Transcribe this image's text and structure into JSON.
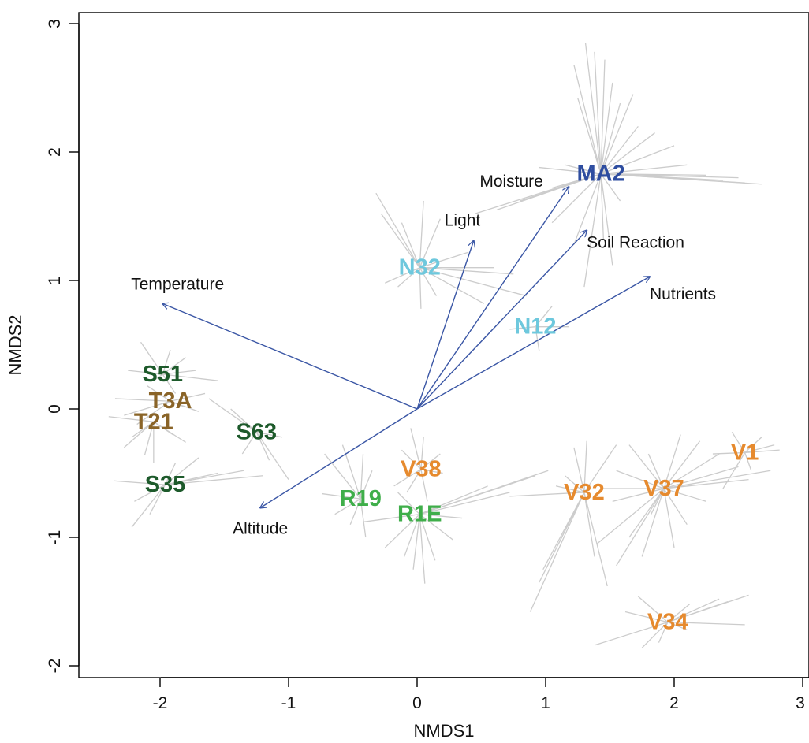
{
  "chart_data": {
    "type": "scatter",
    "xlabel": "NMDS1",
    "ylabel": "NMDS2",
    "xlim": [
      -2.62,
      3.0
    ],
    "ylim": [
      -2.07,
      3.0
    ],
    "x_ticks": [
      -2,
      -1,
      0,
      1,
      2,
      3
    ],
    "y_ticks": [
      -2,
      -1,
      0,
      1,
      2,
      3
    ],
    "grid": false,
    "colors": {
      "spider": "#cccccc",
      "vector": "#3a56a5",
      "dark_green": "#1d5a2b",
      "brown": "#8a6428",
      "light_green": "#3fae4a",
      "cyan": "#6ec8dd",
      "orange": "#e68a2e",
      "navy": "#2e4da0"
    },
    "vectors": [
      {
        "label": "Temperature",
        "x": -1.98,
        "y": 0.82
      },
      {
        "label": "Light",
        "x": 0.44,
        "y": 1.31
      },
      {
        "label": "Moisture",
        "x": 1.18,
        "y": 1.73
      },
      {
        "label": "Soil Reaction",
        "x": 1.32,
        "y": 1.39
      },
      {
        "label": "Nutrients",
        "x": 1.81,
        "y": 1.03
      },
      {
        "label": "Altitude",
        "x": -1.22,
        "y": -0.77
      }
    ],
    "sites": [
      {
        "label": "MA2",
        "x": 1.43,
        "y": 1.83,
        "color": "navy",
        "spokes": [
          [
            1.22,
            2.68
          ],
          [
            1.31,
            2.85
          ],
          [
            1.38,
            2.78
          ],
          [
            1.46,
            2.72
          ],
          [
            1.52,
            2.54
          ],
          [
            1.58,
            2.38
          ],
          [
            1.68,
            2.45
          ],
          [
            1.72,
            2.2
          ],
          [
            1.85,
            2.15
          ],
          [
            2.0,
            2.05
          ],
          [
            2.1,
            1.9
          ],
          [
            2.25,
            1.82
          ],
          [
            2.38,
            1.78
          ],
          [
            2.55,
            1.76
          ],
          [
            2.68,
            1.75
          ],
          [
            2.5,
            1.8
          ],
          [
            1.58,
            1.62
          ],
          [
            1.45,
            1.32
          ],
          [
            1.52,
            1.12
          ],
          [
            1.3,
            0.95
          ],
          [
            1.22,
            1.28
          ],
          [
            1.05,
            1.45
          ],
          [
            0.8,
            1.62
          ],
          [
            0.62,
            1.55
          ],
          [
            0.45,
            1.52
          ],
          [
            1.05,
            1.72
          ],
          [
            1.15,
            1.9
          ],
          [
            0.95,
            1.88
          ],
          [
            1.25,
            2.42
          ]
        ]
      },
      {
        "label": "N32",
        "x": 0.02,
        "y": 1.1,
        "color": "cyan",
        "spokes": [
          [
            -0.32,
            1.68
          ],
          [
            -0.28,
            1.52
          ],
          [
            -0.12,
            1.45
          ],
          [
            0.05,
            1.62
          ],
          [
            0.18,
            1.48
          ],
          [
            0.36,
            1.1
          ],
          [
            0.4,
            1.22
          ],
          [
            0.6,
            1.1
          ],
          [
            0.75,
            1.05
          ],
          [
            0.85,
            0.88
          ],
          [
            0.52,
            0.82
          ],
          [
            0.15,
            0.88
          ],
          [
            0.03,
            0.78
          ],
          [
            -0.15,
            0.95
          ],
          [
            -0.25,
            0.98
          ]
        ]
      },
      {
        "label": "N12",
        "x": 0.92,
        "y": 0.64,
        "color": "cyan",
        "spokes": [
          [
            0.72,
            0.62
          ],
          [
            1.05,
            0.8
          ],
          [
            1.18,
            0.64
          ],
          [
            0.95,
            0.45
          ]
        ]
      },
      {
        "label": "S51",
        "x": -1.98,
        "y": 0.27,
        "color": "dark_green",
        "spokes": [
          [
            -2.15,
            0.52
          ],
          [
            -1.92,
            0.46
          ],
          [
            -1.72,
            0.3
          ],
          [
            -1.55,
            0.22
          ],
          [
            -1.88,
            0.12
          ],
          [
            -2.05,
            0.22
          ],
          [
            -2.25,
            0.3
          ],
          [
            -1.8,
            0.4
          ]
        ]
      },
      {
        "label": "T3A",
        "x": -1.92,
        "y": 0.06,
        "color": "brown",
        "spokes": [
          [
            -2.35,
            0.08
          ],
          [
            -2.28,
            -0.05
          ],
          [
            -2.18,
            -0.12
          ],
          [
            -1.65,
            0.12
          ],
          [
            -1.7,
            -0.02
          ],
          [
            -1.82,
            0.02
          ],
          [
            -2.1,
            0.18
          ]
        ]
      },
      {
        "label": "T21",
        "x": -2.05,
        "y": -0.1,
        "color": "brown",
        "spokes": [
          [
            -2.4,
            -0.06
          ],
          [
            -2.28,
            -0.3
          ],
          [
            -2.12,
            -0.36
          ],
          [
            -2.05,
            -0.42
          ],
          [
            -1.8,
            -0.26
          ],
          [
            -1.9,
            -0.2
          ],
          [
            -2.22,
            -0.22
          ]
        ]
      },
      {
        "label": "S63",
        "x": -1.25,
        "y": -0.18,
        "color": "dark_green",
        "spokes": [
          [
            -1.62,
            0.08
          ],
          [
            -1.45,
            0.0
          ],
          [
            -1.05,
            -0.22
          ],
          [
            -1.0,
            -0.55
          ],
          [
            -1.15,
            -0.4
          ],
          [
            -1.36,
            -0.35
          ]
        ]
      },
      {
        "label": "S35",
        "x": -1.96,
        "y": -0.59,
        "color": "dark_green",
        "spokes": [
          [
            -2.36,
            -0.56
          ],
          [
            -2.2,
            -0.72
          ],
          [
            -2.08,
            -0.82
          ],
          [
            -2.22,
            -0.92
          ],
          [
            -1.55,
            -0.5
          ],
          [
            -1.35,
            -0.48
          ],
          [
            -1.2,
            -0.52
          ],
          [
            -1.7,
            -0.38
          ],
          [
            -1.88,
            -0.42
          ]
        ]
      },
      {
        "label": "R19",
        "x": -0.44,
        "y": -0.7,
        "color": "light_green",
        "spokes": [
          [
            -0.72,
            -0.35
          ],
          [
            -0.58,
            -0.28
          ],
          [
            -0.42,
            -0.35
          ],
          [
            -0.35,
            -0.48
          ],
          [
            -0.52,
            -0.9
          ],
          [
            -0.4,
            -1.0
          ],
          [
            -0.64,
            -0.82
          ],
          [
            -0.74,
            -0.66
          ]
        ]
      },
      {
        "label": "V38",
        "x": 0.03,
        "y": -0.47,
        "color": "orange",
        "spokes": [
          [
            -0.05,
            -0.15
          ],
          [
            0.05,
            -0.22
          ],
          [
            0.18,
            -0.35
          ],
          [
            0.2,
            -0.5
          ],
          [
            0.08,
            -0.72
          ],
          [
            -0.08,
            -0.65
          ],
          [
            -0.18,
            -0.6
          ],
          [
            -0.12,
            -0.32
          ]
        ]
      },
      {
        "label": "R1E",
        "x": 0.02,
        "y": -0.82,
        "color": "light_green",
        "spokes": [
          [
            -0.42,
            -0.88
          ],
          [
            -0.25,
            -1.08
          ],
          [
            -0.1,
            -1.15
          ],
          [
            -0.03,
            -1.25
          ],
          [
            0.06,
            -1.36
          ],
          [
            0.14,
            -1.18
          ],
          [
            0.28,
            -1.02
          ],
          [
            0.35,
            -0.85
          ],
          [
            0.72,
            -0.65
          ],
          [
            0.92,
            -0.52
          ],
          [
            1.02,
            -0.48
          ],
          [
            0.55,
            -0.6
          ],
          [
            -0.15,
            -0.65
          ]
        ]
      },
      {
        "label": "V32",
        "x": 1.3,
        "y": -0.65,
        "color": "orange",
        "spokes": [
          [
            0.72,
            -0.68
          ],
          [
            1.08,
            -0.6
          ],
          [
            1.15,
            -0.52
          ],
          [
            1.22,
            -0.3
          ],
          [
            1.32,
            -0.25
          ],
          [
            1.55,
            -0.28
          ],
          [
            1.38,
            -1.15
          ],
          [
            1.48,
            -1.38
          ],
          [
            0.98,
            -1.25
          ],
          [
            0.95,
            -1.35
          ],
          [
            0.88,
            -1.58
          ],
          [
            1.1,
            -1.05
          ]
        ]
      },
      {
        "label": "V37",
        "x": 1.92,
        "y": -0.62,
        "color": "orange",
        "spokes": [
          [
            2.05,
            -0.2
          ],
          [
            2.2,
            -0.25
          ],
          [
            2.35,
            -0.35
          ],
          [
            2.5,
            -0.45
          ],
          [
            2.58,
            -0.55
          ],
          [
            2.75,
            -0.48
          ],
          [
            1.8,
            -0.35
          ],
          [
            1.65,
            -0.28
          ],
          [
            1.55,
            -0.48
          ],
          [
            1.45,
            -0.62
          ],
          [
            1.52,
            -0.72
          ],
          [
            1.4,
            -1.05
          ],
          [
            1.55,
            -1.22
          ],
          [
            1.65,
            -1.0
          ],
          [
            1.75,
            -1.15
          ],
          [
            1.82,
            -0.82
          ],
          [
            2.0,
            -1.08
          ],
          [
            2.1,
            -0.9
          ],
          [
            2.25,
            -0.72
          ]
        ]
      },
      {
        "label": "V1",
        "x": 2.55,
        "y": -0.34,
        "color": "orange",
        "spokes": [
          [
            2.3,
            -0.35
          ],
          [
            2.38,
            -0.62
          ],
          [
            2.45,
            -0.18
          ],
          [
            2.78,
            -0.28
          ],
          [
            2.82,
            -0.32
          ],
          [
            2.6,
            -0.48
          ],
          [
            2.68,
            -0.22
          ]
        ]
      },
      {
        "label": "V34",
        "x": 1.95,
        "y": -1.66,
        "color": "orange",
        "spokes": [
          [
            1.38,
            -1.84
          ],
          [
            1.62,
            -1.58
          ],
          [
            1.72,
            -1.46
          ],
          [
            2.12,
            -1.52
          ],
          [
            2.35,
            -1.48
          ],
          [
            2.42,
            -1.5
          ],
          [
            2.58,
            -1.45
          ],
          [
            2.55,
            -1.68
          ],
          [
            1.75,
            -1.86
          ],
          [
            1.88,
            -1.82
          ],
          [
            2.1,
            -1.72
          ]
        ]
      }
    ]
  }
}
